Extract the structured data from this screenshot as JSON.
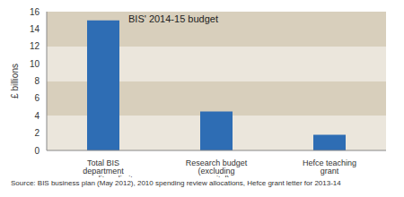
{
  "chart_data": {
    "type": "bar",
    "title": "BIS' 2014-15 budget",
    "y_label": "£ billions",
    "categories": [
      "Total BIS department expenditure limit",
      "Research budget (excluding capital)",
      "Hefce teaching grant"
    ],
    "values": [
      15,
      4.5,
      1.8
    ],
    "color": "#2e6db4",
    "ylim": [
      0,
      16
    ],
    "yticks": [
      0,
      2,
      4,
      6,
      8,
      10,
      12,
      14,
      16
    ],
    "grid": true,
    "source": "Source: BIS business plan (May 2012), 2010 spending review allocations, Hefce grant letter for 2013-14"
  }
}
